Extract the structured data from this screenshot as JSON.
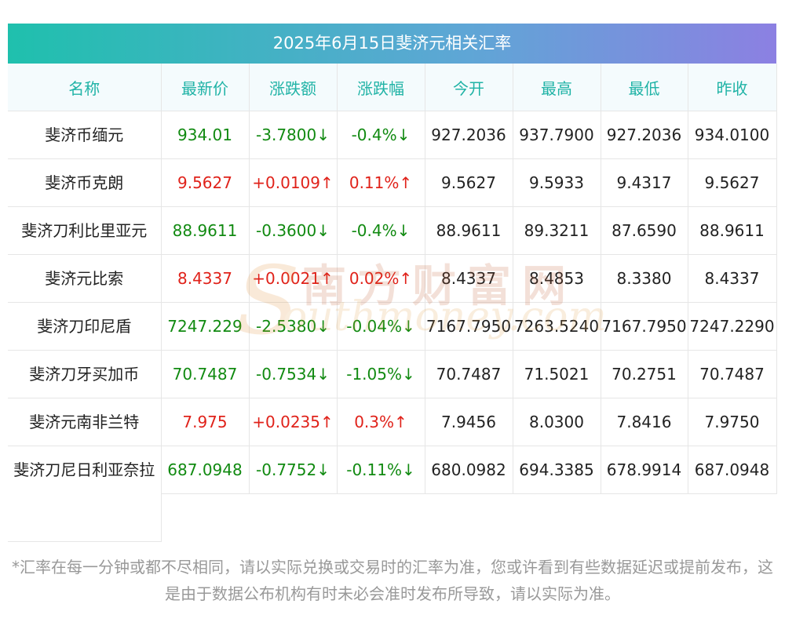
{
  "title": "2025年6月15日斐济元相关汇率",
  "headers": [
    "名称",
    "最新价",
    "涨跌额",
    "涨跌幅",
    "今开",
    "最高",
    "最低",
    "昨收"
  ],
  "rows": [
    {
      "name": "斐济币缅元",
      "latest": "934.01",
      "change": "-3.7800↓",
      "pct": "-0.4%↓",
      "open": "927.2036",
      "high": "937.7900",
      "low": "927.2036",
      "prev": "934.0100",
      "dir": "down"
    },
    {
      "name": "斐济币克朗",
      "latest": "9.5627",
      "change": "+0.0109↑",
      "pct": "0.11%↑",
      "open": "9.5627",
      "high": "9.5933",
      "low": "9.4317",
      "prev": "9.5627",
      "dir": "up"
    },
    {
      "name": "斐济刀利比里亚元",
      "latest": "88.9611",
      "change": "-0.3600↓",
      "pct": "-0.4%↓",
      "open": "88.9611",
      "high": "89.3211",
      "low": "87.6590",
      "prev": "88.9611",
      "dir": "down"
    },
    {
      "name": "斐济元比索",
      "latest": "8.4337",
      "change": "+0.0021↑",
      "pct": "0.02%↑",
      "open": "8.4337",
      "high": "8.4853",
      "low": "8.3380",
      "prev": "8.4337",
      "dir": "up"
    },
    {
      "name": "斐济刀印尼盾",
      "latest": "7247.229",
      "change": "-2.5380↓",
      "pct": "-0.04%↓",
      "open": "7167.7950",
      "high": "7263.5240",
      "low": "7167.7950",
      "prev": "7247.2290",
      "dir": "down"
    },
    {
      "name": "斐济刀牙买加币",
      "latest": "70.7487",
      "change": "-0.7534↓",
      "pct": "-1.05%↓",
      "open": "70.7487",
      "high": "71.5021",
      "low": "70.2751",
      "prev": "70.7487",
      "dir": "down"
    },
    {
      "name": "斐济元南非兰特",
      "latest": "7.975",
      "change": "+0.0235↑",
      "pct": "0.3%↑",
      "open": "7.9456",
      "high": "8.0300",
      "low": "7.8416",
      "prev": "7.9750",
      "dir": "up"
    },
    {
      "name": "斐济刀尼日利亚奈拉",
      "latest": "687.0948",
      "change": "-0.7752↓",
      "pct": "-0.11%↓",
      "open": "680.0982",
      "high": "694.3385",
      "low": "678.9914",
      "prev": "687.0948",
      "dir": "down"
    }
  ],
  "note": "*汇率在每一分钟或都不尽相同，请以实际兑换或交易时的汇率为准，您或许看到有些数据延迟或提前发布，这是由于数据公布机构有时未必会准时发布所导致，请以实际为准。",
  "watermark": {
    "cn": "南方财富网",
    "en": "outhmoney.com",
    "s": "S"
  },
  "colors": {
    "up": "#e0221a",
    "down": "#118a11",
    "header_text": "#20b3a6"
  }
}
